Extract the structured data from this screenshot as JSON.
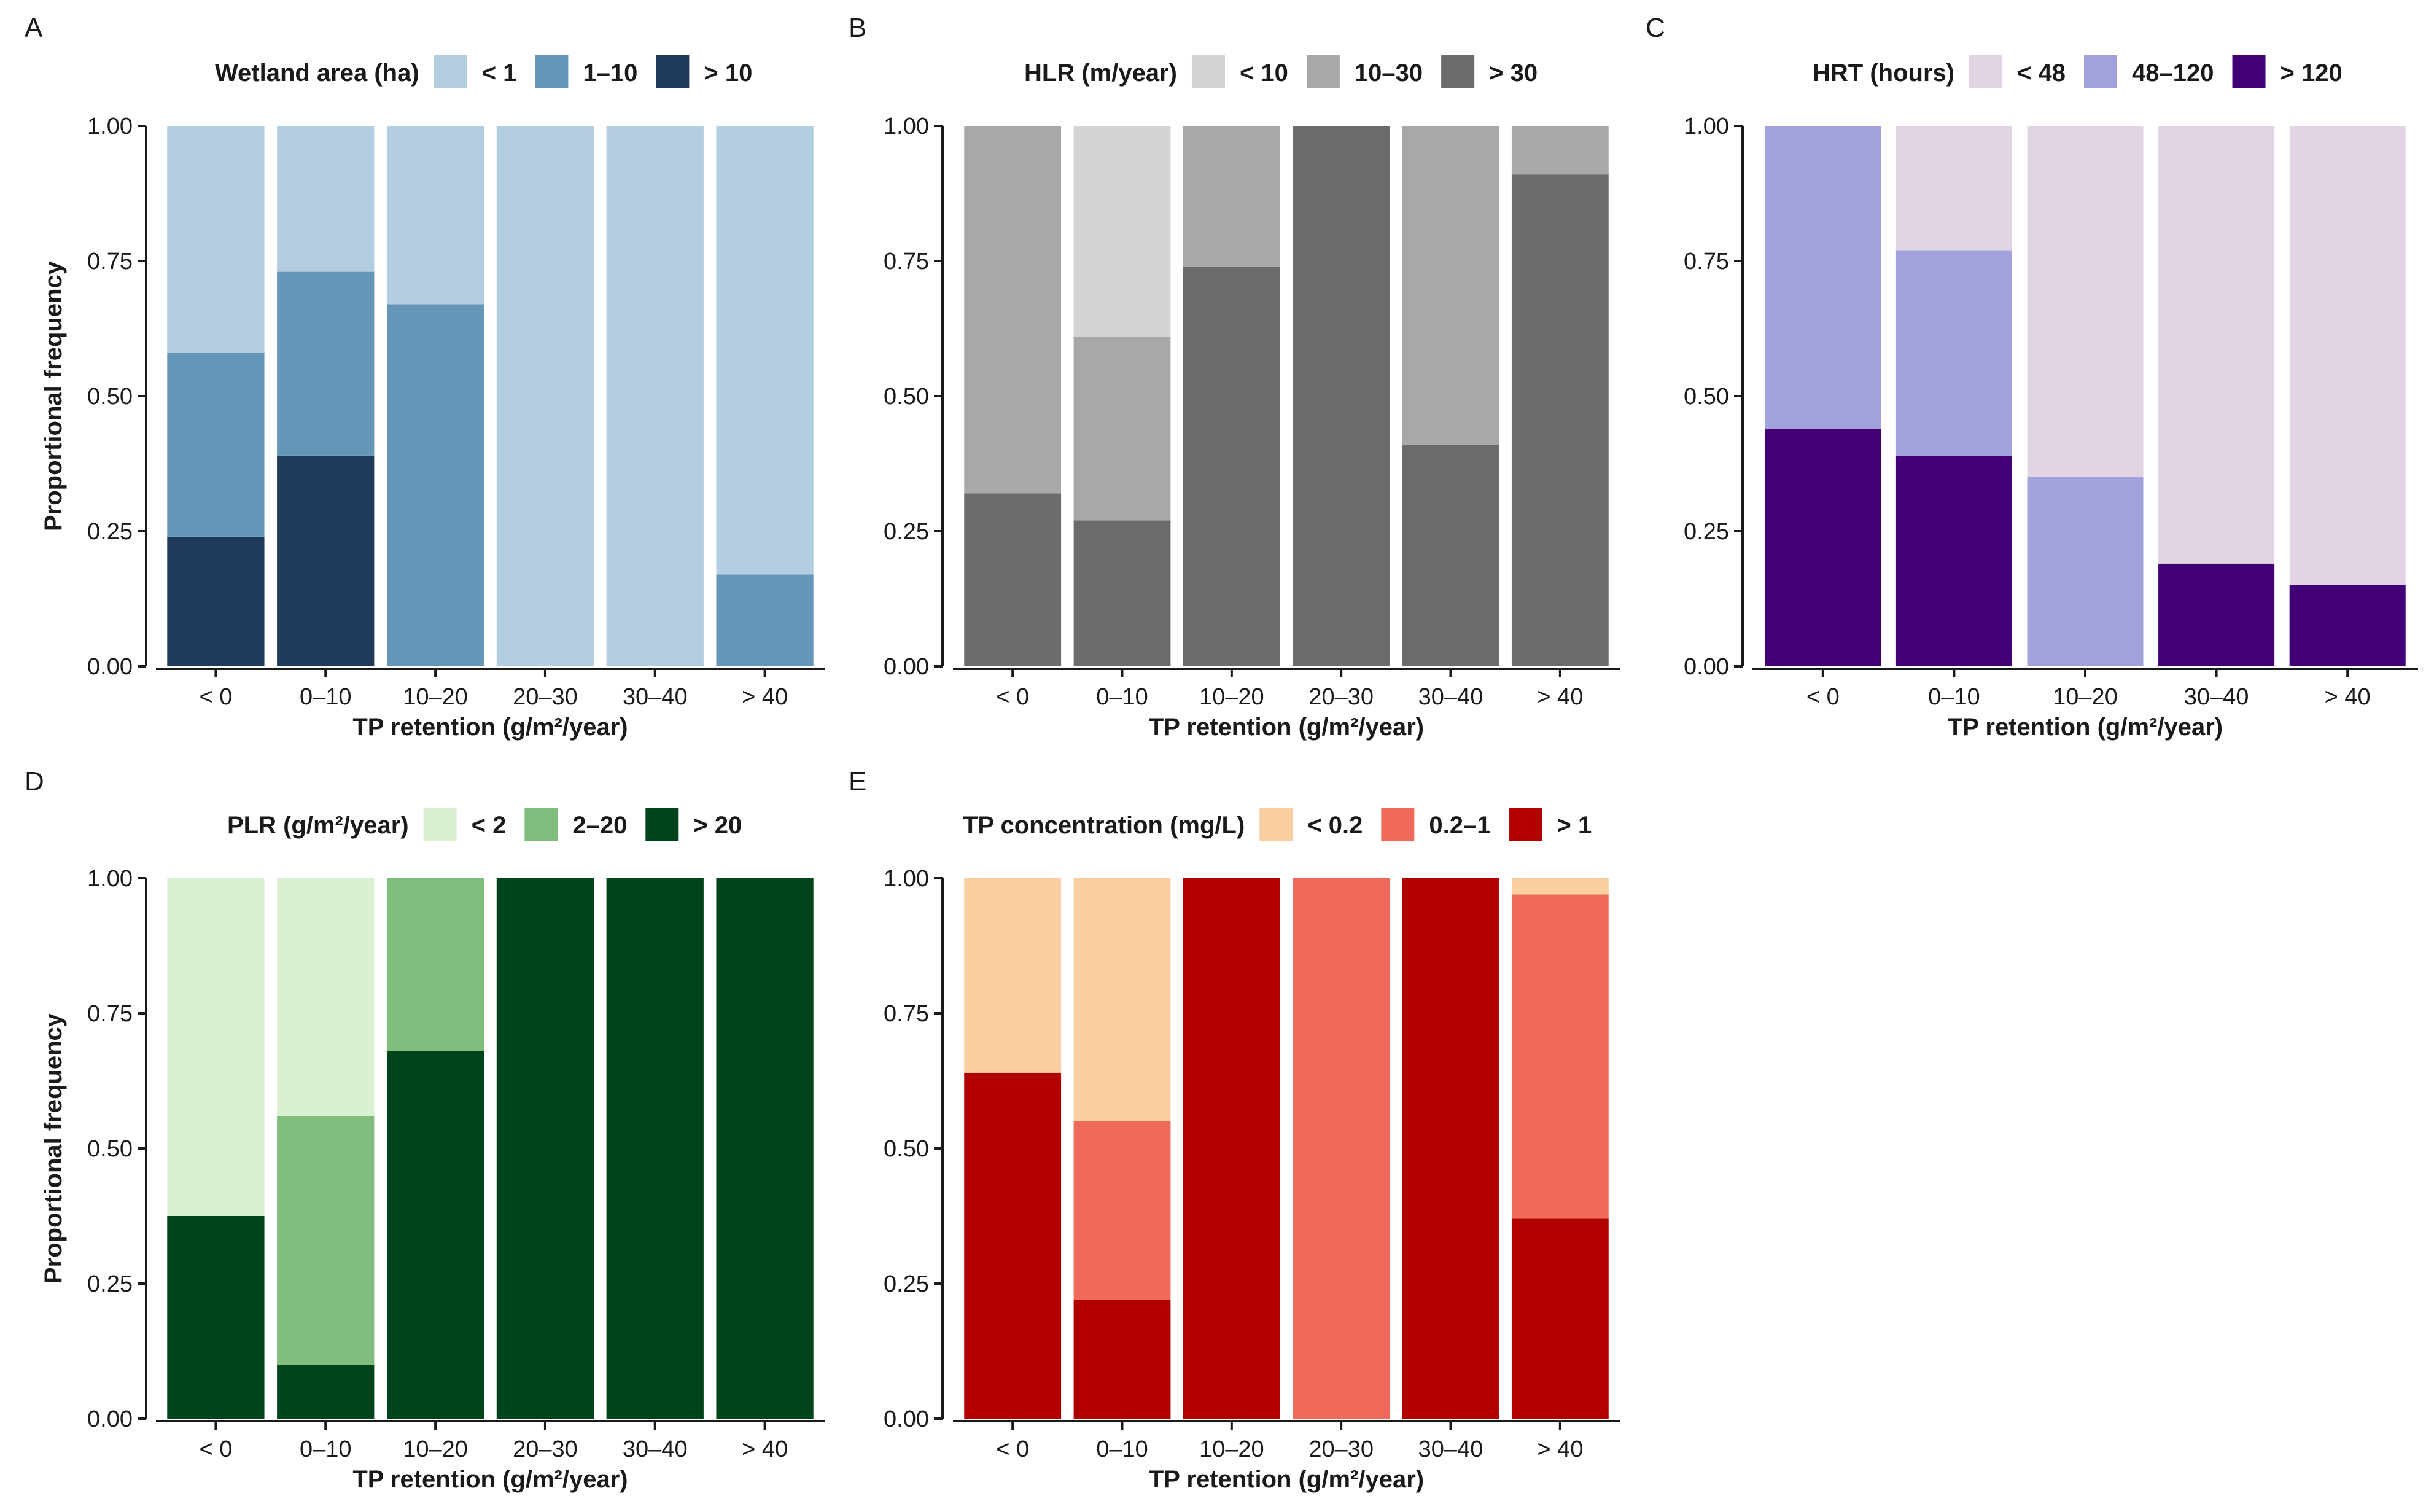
{
  "chart_data": [
    {
      "panel": "A",
      "type": "bar",
      "stacked": true,
      "legend_title": "Wetland area (ha)",
      "categories": [
        "< 0",
        "0–10",
        "10–20",
        "20–30",
        "30–40",
        "> 40"
      ],
      "series": [
        {
          "name": "> 10",
          "color": "#1f3a5a",
          "values": [
            0.24,
            0.39,
            0,
            0,
            0,
            0
          ]
        },
        {
          "name": "1–10",
          "color": "#6497b7",
          "values": [
            0.34,
            0.34,
            0.67,
            0,
            0,
            0.17
          ]
        },
        {
          "name": "< 1",
          "color": "#b3cde1",
          "values": [
            0.42,
            0.27,
            0.33,
            1.0,
            1.0,
            0.83
          ]
        }
      ],
      "legend_order": [
        "< 1",
        "1–10",
        "> 10"
      ],
      "xlabel": "TP retention (g/m²/year)",
      "ylabel": "Proportional frequency",
      "ylim": [
        0,
        1
      ],
      "yticks": [
        "0.00",
        "0.25",
        "0.50",
        "0.75",
        "1.00"
      ]
    },
    {
      "panel": "B",
      "type": "bar",
      "stacked": true,
      "legend_title": "HLR (m/year)",
      "categories": [
        "< 0",
        "0–10",
        "10–20",
        "20–30",
        "30–40",
        "> 40"
      ],
      "series": [
        {
          "name": "> 30",
          "color": "#6b6b6b",
          "values": [
            0.32,
            0.27,
            0.74,
            1.0,
            0.41,
            0.91
          ]
        },
        {
          "name": "10–30",
          "color": "#a8a8a8",
          "values": [
            0.68,
            0.34,
            0.26,
            0,
            0.59,
            0.09
          ]
        },
        {
          "name": "< 10",
          "color": "#d4d4d4",
          "values": [
            0,
            0.39,
            0,
            0,
            0,
            0
          ]
        }
      ],
      "legend_order": [
        "< 10",
        "10–30",
        "> 30"
      ],
      "xlabel": "TP retention (g/m²/year)",
      "ylabel": "",
      "ylim": [
        0,
        1
      ],
      "yticks": [
        "0.00",
        "0.25",
        "0.50",
        "0.75",
        "1.00"
      ]
    },
    {
      "panel": "C",
      "type": "bar",
      "stacked": true,
      "legend_title": "HRT (hours)",
      "categories": [
        "< 0",
        "0–10",
        "10–20",
        "30–40",
        "> 40"
      ],
      "series": [
        {
          "name": "> 120",
          "color": "#420077",
          "values": [
            0.44,
            0.39,
            0,
            0.19,
            0.15
          ]
        },
        {
          "name": "48–120",
          "color": "#a2a1db",
          "values": [
            0.56,
            0.38,
            0.35,
            0,
            0
          ]
        },
        {
          "name": "< 48",
          "color": "#e1d4e3",
          "values": [
            0,
            0.23,
            0.65,
            0.81,
            0.85
          ]
        }
      ],
      "legend_order": [
        "< 48",
        "48–120",
        "> 120"
      ],
      "xlabel": "TP retention (g/m²/year)",
      "ylabel": "",
      "ylim": [
        0,
        1
      ],
      "yticks": [
        "0.00",
        "0.25",
        "0.50",
        "0.75",
        "1.00"
      ]
    },
    {
      "panel": "D",
      "type": "bar",
      "stacked": true,
      "legend_title": "PLR (g/m²/year)",
      "categories": [
        "< 0",
        "0–10",
        "10–20",
        "20–30",
        "30–40",
        "> 40"
      ],
      "series": [
        {
          "name": "> 20",
          "color": "#00441b",
          "values": [
            0.375,
            0.1,
            0.68,
            1.0,
            1.0,
            1.0
          ]
        },
        {
          "name": "2–20",
          "color": "#80bd7c",
          "values": [
            0,
            0.46,
            0.32,
            0,
            0,
            0
          ]
        },
        {
          "name": "< 2",
          "color": "#d9f0d3",
          "values": [
            0.625,
            0.44,
            0,
            0,
            0,
            0
          ]
        }
      ],
      "legend_order": [
        "< 2",
        "2–20",
        "> 20"
      ],
      "xlabel": "TP retention (g/m²/year)",
      "ylabel": "Proportional frequency",
      "ylim": [
        0,
        1
      ],
      "yticks": [
        "0.00",
        "0.25",
        "0.50",
        "0.75",
        "1.00"
      ]
    },
    {
      "panel": "E",
      "type": "bar",
      "stacked": true,
      "legend_title": "TP concentration (mg/L)",
      "categories": [
        "< 0",
        "0–10",
        "10–20",
        "20–30",
        "30–40",
        "> 40"
      ],
      "series": [
        {
          "name": "> 1",
          "color": "#b20000",
          "values": [
            0.64,
            0.22,
            1.0,
            0,
            1.0,
            0.37
          ]
        },
        {
          "name": "0.2–1",
          "color": "#ef6a5b",
          "values": [
            0,
            0.33,
            0,
            1.0,
            0,
            0.6
          ]
        },
        {
          "name": "< 0.2",
          "color": "#f9cfa2",
          "values": [
            0.36,
            0.45,
            0,
            0,
            0,
            0.03
          ]
        }
      ],
      "legend_order": [
        "< 0.2",
        "0.2–1",
        "> 1"
      ],
      "xlabel": "TP retention (g/m²/year)",
      "ylabel": "",
      "ylim": [
        0,
        1
      ],
      "yticks": [
        "0.00",
        "0.25",
        "0.50",
        "0.75",
        "1.00"
      ]
    }
  ]
}
